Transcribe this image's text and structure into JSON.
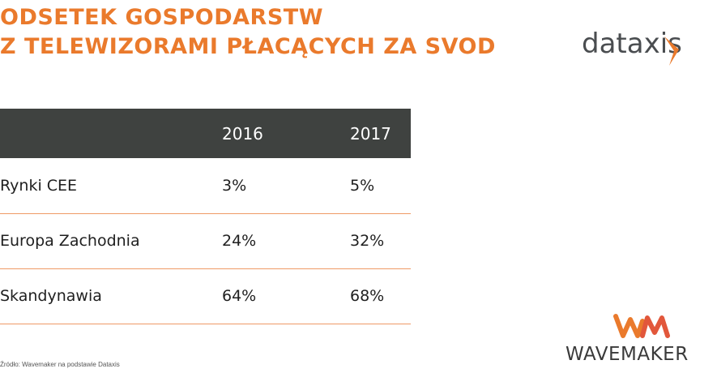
{
  "title": {
    "line1": "ODSETEK GOSPODARSTW",
    "line2": "Z TELEWIZORAMI PŁACĄCYCH ZA SVOD"
  },
  "logos": {
    "dataxis": "dataxis",
    "wavemaker": "WAVEMAKER"
  },
  "colors": {
    "accent": "#ea7a2c",
    "header_bg": "#3f4240",
    "row_border": "#ef9a66"
  },
  "table": {
    "headers": [
      "",
      "2016",
      "2017"
    ],
    "rows": [
      [
        "Rynki CEE",
        "3%",
        "5%"
      ],
      [
        "Europa Zachodnia",
        "24%",
        "32%"
      ],
      [
        "Skandynawia",
        "64%",
        "68%"
      ]
    ]
  },
  "source": "Źródło: Wavemaker na podstawie Dataxis"
}
